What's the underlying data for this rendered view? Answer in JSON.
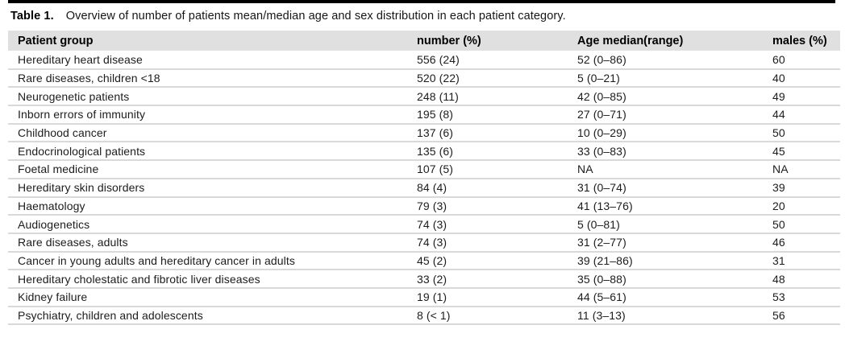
{
  "theme": {
    "top_rule_color": "#000000",
    "header_bg": "#e0e0e0",
    "row_separator": "#d9d9d9",
    "text_color": "#1c1c1c"
  },
  "caption": {
    "label": "Table 1.",
    "text": "Overview of number of patients mean/median age and sex distribution in each patient category."
  },
  "table": {
    "columns": [
      "Patient group",
      "number (%)",
      "Age median(range)",
      "males (%)"
    ],
    "rows": [
      [
        "Hereditary heart disease",
        "556 (24)",
        "52 (0–86)",
        "60"
      ],
      [
        "Rare diseases, children <18",
        "520 (22)",
        "5 (0–21)",
        "40"
      ],
      [
        "Neurogenetic patients",
        "248 (11)",
        "42 (0–85)",
        "49"
      ],
      [
        "Inborn errors of immunity",
        "195 (8)",
        "27 (0–71)",
        "44"
      ],
      [
        "Childhood cancer",
        "137 (6)",
        "10 (0–29)",
        "50"
      ],
      [
        "Endocrinological patients",
        "135 (6)",
        "33 (0–83)",
        "45"
      ],
      [
        "Foetal medicine",
        "107 (5)",
        "NA",
        "NA"
      ],
      [
        "Hereditary skin disorders",
        "84 (4)",
        "31 (0–74)",
        "39"
      ],
      [
        "Haematology",
        "79 (3)",
        "41 (13–76)",
        "20"
      ],
      [
        "Audiogenetics",
        "74 (3)",
        "5 (0–81)",
        "50"
      ],
      [
        "Rare diseases, adults",
        "74 (3)",
        "31 (2–77)",
        "46"
      ],
      [
        "Cancer in young adults and hereditary cancer in adults",
        "45 (2)",
        "39 (21–86)",
        "31"
      ],
      [
        "Hereditary cholestatic and fibrotic liver diseases",
        "33 (2)",
        "35 (0–88)",
        "48"
      ],
      [
        "Kidney failure",
        "19 (1)",
        "44 (5–61)",
        "53"
      ],
      [
        "Psychiatry, children and adolescents",
        "8 (< 1)",
        "11 (3–13)",
        "56"
      ]
    ]
  }
}
